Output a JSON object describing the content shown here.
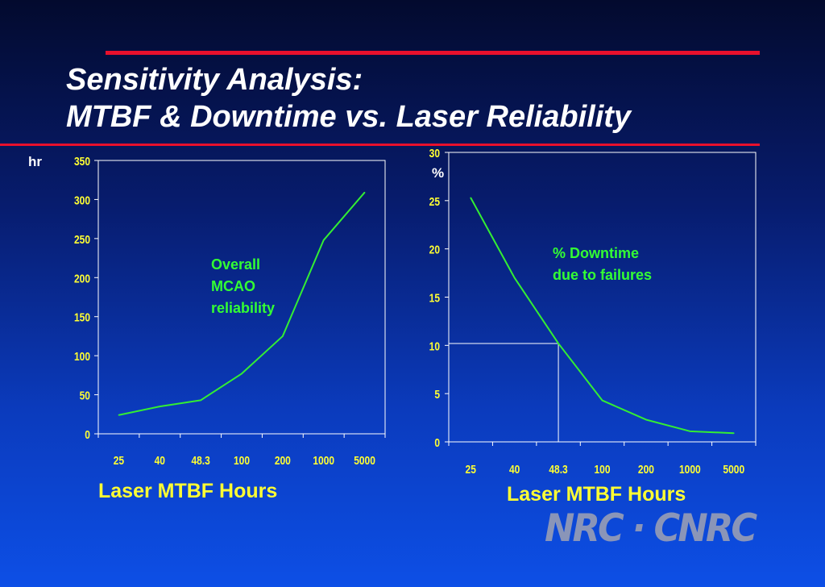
{
  "slide": {
    "title_line1": "Sensitivity Analysis:",
    "title_line2": "MTBF  & Downtime vs. Laser Reliability",
    "logo_text": "NRC · CNRC"
  },
  "colors": {
    "title": "#ffffff",
    "accent_rule": "#e8102c",
    "tick_text": "#ffff33",
    "series_line": "#33ee33",
    "axis": "#ffffff"
  },
  "chart_data": [
    {
      "type": "line",
      "categories": [
        "25",
        "40",
        "48.3",
        "100",
        "200",
        "1000",
        "5000"
      ],
      "series": [
        {
          "values": [
            24,
            35,
            43,
            77,
            125,
            248,
            309
          ]
        }
      ],
      "xlabel": "Laser MTBF Hours",
      "ylabel": "hr",
      "ylim": [
        0,
        350
      ],
      "yticks": [
        0,
        50,
        100,
        150,
        200,
        250,
        300,
        350
      ],
      "annotation": "Overall MCAO reliability",
      "grid": false
    },
    {
      "type": "line",
      "categories": [
        "25",
        "40",
        "48.3",
        "100",
        "200",
        "1000",
        "5000"
      ],
      "series": [
        {
          "values": [
            25.3,
            17,
            10.2,
            4.3,
            2.3,
            1.1,
            0.9
          ]
        }
      ],
      "xlabel": "Laser MTBF Hours",
      "ylabel": "%",
      "ylim": [
        0,
        30
      ],
      "yticks": [
        0,
        5,
        10,
        15,
        20,
        25,
        30
      ],
      "annotation_line1": "% Downtime",
      "annotation_line2": "due to failures",
      "reference": {
        "category": "48.3",
        "y": 10.2
      },
      "grid": false
    }
  ]
}
